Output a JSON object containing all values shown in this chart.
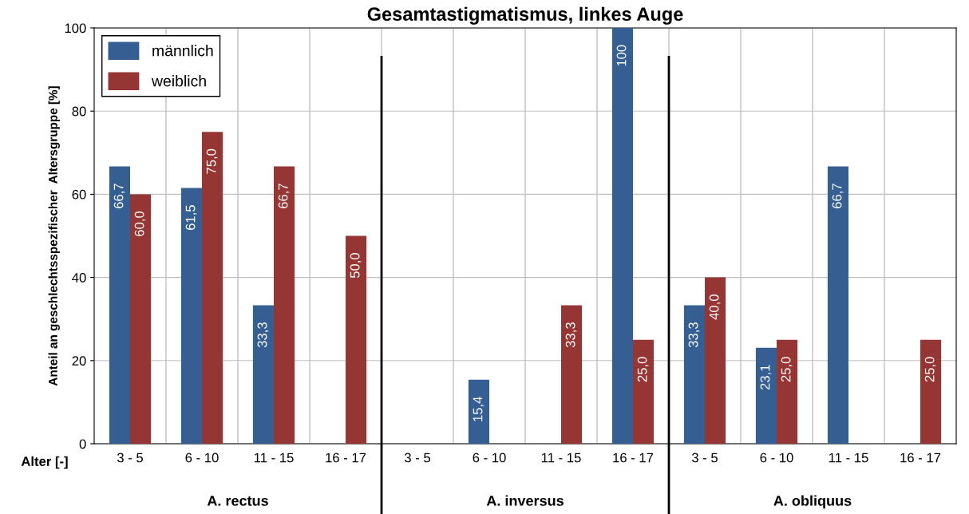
{
  "chart_data": {
    "type": "bar",
    "title": "Gesamtastigmatismus, linkes Auge",
    "ylabel": "Anteil an geschlechtsspezifischer  Altersgruppe [%]",
    "categories": [
      "3 - 5",
      "6 - 10",
      "11 - 15",
      "16 - 17",
      "3 - 5",
      "6 - 10",
      "11 - 15",
      "16 - 17",
      "3 - 5",
      "6 - 10",
      "11 - 15",
      "16 - 17"
    ],
    "series": [
      {
        "name": "männlich",
        "color": "#355e92",
        "values": [
          66.7,
          61.5,
          33.3,
          null,
          null,
          15.4,
          null,
          100,
          33.3,
          23.1,
          66.7,
          null
        ],
        "value_labels": [
          "66,7",
          "61,5",
          "33,3",
          null,
          null,
          "15,4",
          null,
          "100",
          "33,3",
          "23,1",
          "66,7",
          null
        ]
      },
      {
        "name": "weiblich",
        "color": "#963634",
        "values": [
          60.0,
          75.0,
          66.7,
          50.0,
          null,
          null,
          33.3,
          25.0,
          40.0,
          25.0,
          null,
          25.0
        ],
        "value_labels": [
          "60,0",
          "75,0",
          "66,7",
          "50,0",
          null,
          null,
          "33,3",
          "25,0",
          "40,0",
          "25,0",
          null,
          "25,0"
        ]
      }
    ],
    "ylim": [
      0,
      100
    ],
    "yticks": [
      0,
      20,
      40,
      60,
      80,
      100
    ],
    "grid": true,
    "legend": "top left",
    "annotations": [
      "Alter [-]",
      "A. rectus",
      "A. inversus",
      "A. obliquus"
    ]
  }
}
